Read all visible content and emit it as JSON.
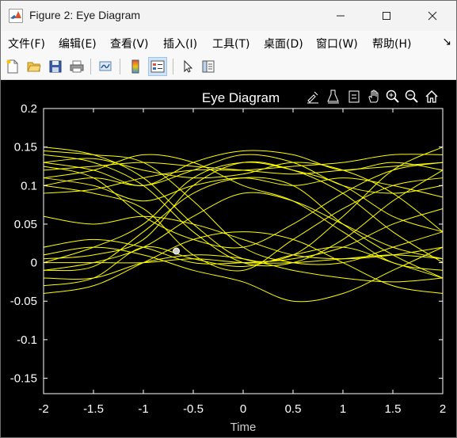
{
  "window": {
    "title": "Figure 2: Eye Diagram",
    "minimize_icon": "minimize-icon",
    "maximize_icon": "maximize-icon",
    "close_icon": "close-icon",
    "app_icon": "matlab-logo-icon"
  },
  "menu": {
    "items": [
      "文件(F)",
      "编辑(E)",
      "查看(V)",
      "插入(I)",
      "工具(T)",
      "桌面(D)",
      "窗口(W)",
      "帮助(H)"
    ],
    "overflow": "↘"
  },
  "toolbar": {
    "buttons": [
      "new-figure-icon",
      "open-file-icon",
      "save-icon",
      "print-icon",
      "link-plot-icon",
      "colorbar-icon",
      "legend-icon",
      "pointer-icon",
      "property-inspector-icon"
    ]
  },
  "axes_toolbar": {
    "buttons": [
      "brush-icon",
      "data-tips-icon",
      "export-icon",
      "pan-icon",
      "zoom-in-icon",
      "zoom-out-icon",
      "home-icon"
    ]
  },
  "colors": {
    "trace": "#ffff00",
    "axes_bg": "#000000",
    "axis_line": "#ffffff",
    "tick_label": "#ffffff"
  },
  "chart_data": {
    "type": "line",
    "title": "Eye Diagram",
    "xlabel": "Time",
    "ylabel": "",
    "xlim": [
      -2,
      2
    ],
    "ylim": [
      -0.17,
      0.2
    ],
    "xticks": [
      -2,
      -1.5,
      -1,
      -0.5,
      0,
      0.5,
      1,
      1.5,
      2
    ],
    "xtick_labels": [
      "-2",
      "-1.5",
      "-1",
      "-0.5",
      "0",
      "0.5",
      "1",
      "1.5",
      "2"
    ],
    "yticks": [
      0.2,
      0.15,
      0.1,
      0.05,
      0,
      -0.05,
      -0.1,
      -0.15
    ],
    "ytick_labels": [
      "0.2",
      "0.15",
      "0.1",
      "0.05",
      "0",
      "-0.05",
      "-0.1",
      "-0.15"
    ],
    "grid": false,
    "series": [
      {
        "x": [
          -2,
          -1.5,
          -1,
          -0.5,
          0,
          0.5,
          1,
          1.5,
          2
        ],
        "y": [
          0.15,
          0.14,
          0.11,
          0.05,
          0.005,
          0.01,
          0.06,
          0.12,
          0.15
        ]
      },
      {
        "x": [
          -2,
          -1.5,
          -1,
          -0.5,
          0,
          0.5,
          1,
          1.5,
          2
        ],
        "y": [
          0.14,
          0.13,
          0.1,
          0.04,
          0.0,
          0.0,
          0.03,
          0.08,
          0.12
        ]
      },
      {
        "x": [
          -2,
          -1.5,
          -1,
          -0.5,
          0,
          0.5,
          1,
          1.5,
          2
        ],
        "y": [
          0.13,
          0.135,
          0.12,
          0.11,
          0.115,
          0.13,
          0.12,
          0.09,
          0.04
        ]
      },
      {
        "x": [
          -2,
          -1.5,
          -1,
          -0.5,
          0,
          0.5,
          1,
          1.5,
          2
        ],
        "y": [
          0.12,
          0.125,
          0.13,
          0.125,
          0.12,
          0.115,
          0.12,
          0.125,
          0.13
        ]
      },
      {
        "x": [
          -2,
          -1.5,
          -1,
          -0.5,
          0,
          0.5,
          1,
          1.5,
          2
        ],
        "y": [
          0.1,
          0.11,
          0.1,
          0.12,
          0.14,
          0.13,
          0.1,
          0.09,
          0.1
        ]
      },
      {
        "x": [
          -2,
          -1.5,
          -1,
          -0.5,
          0,
          0.5,
          1,
          1.5,
          2
        ],
        "y": [
          0.09,
          0.095,
          0.11,
          0.12,
          0.12,
          0.125,
          0.13,
          0.14,
          0.14
        ]
      },
      {
        "x": [
          -2,
          -1.5,
          -1,
          -0.5,
          0,
          0.5,
          1,
          1.5,
          2
        ],
        "y": [
          0.11,
          0.1,
          0.08,
          0.1,
          0.11,
          0.1,
          0.11,
          0.1,
          0.085
        ]
      },
      {
        "x": [
          -2,
          -1.5,
          -1,
          -0.5,
          0,
          0.5,
          1,
          1.5,
          2
        ],
        "y": [
          0.13,
          0.12,
          0.1,
          0.13,
          0.145,
          0.14,
          0.12,
          0.13,
          0.12
        ]
      },
      {
        "x": [
          -2,
          -1.5,
          -1,
          -0.5,
          0,
          0.5,
          1,
          1.5,
          2
        ],
        "y": [
          0.125,
          0.11,
          0.06,
          0.03,
          0.02,
          0.05,
          0.09,
          0.12,
          0.13
        ]
      },
      {
        "x": [
          -2,
          -1.5,
          -1,
          -0.5,
          0,
          0.5,
          1,
          1.5,
          2
        ],
        "y": [
          0.1,
          0.09,
          0.07,
          0.01,
          -0.01,
          0.03,
          0.07,
          0.1,
          0.11
        ]
      },
      {
        "x": [
          -2,
          -1.5,
          -1,
          -0.5,
          0,
          0.5,
          1,
          1.5,
          2
        ],
        "y": [
          0.005,
          0.01,
          0.03,
          0.1,
          0.13,
          0.12,
          0.09,
          0.04,
          0.0
        ]
      },
      {
        "x": [
          -2,
          -1.5,
          -1,
          -0.5,
          0,
          0.5,
          1,
          1.5,
          2
        ],
        "y": [
          0.0,
          0.02,
          0.05,
          0.11,
          0.13,
          0.12,
          0.1,
          0.06,
          0.04
        ]
      },
      {
        "x": [
          -2,
          -1.5,
          -1,
          -0.5,
          0,
          0.5,
          1,
          1.5,
          2
        ],
        "y": [
          -0.01,
          -0.005,
          0.04,
          0.09,
          0.11,
          0.1,
          0.05,
          0.01,
          -0.02
        ]
      },
      {
        "x": [
          -2,
          -1.5,
          -1,
          -0.5,
          0,
          0.5,
          1,
          1.5,
          2
        ],
        "y": [
          0.0,
          0.0,
          0.0,
          0.005,
          0.0,
          0.0,
          0.005,
          0.01,
          0.005
        ]
      },
      {
        "x": [
          -2,
          -1.5,
          -1,
          -0.5,
          0,
          0.5,
          1,
          1.5,
          2
        ],
        "y": [
          -0.02,
          -0.02,
          0.0,
          0.01,
          0.005,
          -0.01,
          -0.02,
          -0.025,
          -0.02
        ]
      },
      {
        "x": [
          -2,
          -1.5,
          -1,
          -0.5,
          0,
          0.5,
          1,
          1.5,
          2
        ],
        "y": [
          -0.04,
          -0.03,
          0.0,
          0.03,
          0.04,
          0.03,
          0.0,
          -0.03,
          -0.04
        ]
      },
      {
        "x": [
          -2,
          -1.5,
          -1,
          -0.5,
          0,
          0.5,
          1,
          1.5,
          2
        ],
        "y": [
          0.01,
          0.02,
          0.01,
          -0.01,
          -0.025,
          -0.05,
          -0.04,
          -0.01,
          0.02
        ]
      },
      {
        "x": [
          -2,
          -1.5,
          -1,
          -0.5,
          0,
          0.5,
          1,
          1.5,
          2
        ],
        "y": [
          -0.03,
          -0.02,
          0.02,
          0.005,
          -0.005,
          0.01,
          0.02,
          0.0,
          -0.02
        ]
      },
      {
        "x": [
          -2,
          -1.5,
          -1,
          -0.5,
          0,
          0.5,
          1,
          1.5,
          2
        ],
        "y": [
          0.02,
          0.03,
          0.02,
          0.0,
          0.0,
          0.005,
          0.02,
          0.05,
          0.07
        ]
      },
      {
        "x": [
          -2,
          -1.5,
          -1,
          -0.5,
          0,
          0.5,
          1,
          1.5,
          2
        ],
        "y": [
          0.145,
          0.14,
          0.13,
          0.08,
          0.02,
          0.0,
          0.0,
          0.02,
          0.04
        ]
      },
      {
        "x": [
          -2,
          -1.5,
          -1,
          -0.5,
          0,
          0.5,
          1,
          1.5,
          2
        ],
        "y": [
          0.11,
          0.12,
          0.14,
          0.13,
          0.1,
          0.08,
          0.04,
          0.0,
          -0.01
        ]
      },
      {
        "x": [
          -2,
          -1.5,
          -1,
          -0.5,
          0,
          0.5,
          1,
          1.5,
          2
        ],
        "y": [
          0.06,
          0.05,
          0.06,
          0.05,
          0.03,
          0.01,
          0.005,
          0.01,
          0.02
        ]
      },
      {
        "x": [
          -2,
          -1.5,
          -1,
          -0.5,
          0,
          0.5,
          1,
          1.5,
          2
        ],
        "y": [
          -0.01,
          0.0,
          0.02,
          0.06,
          0.09,
          0.08,
          0.05,
          0.02,
          0.005
        ]
      }
    ],
    "marker": {
      "x": -0.67,
      "y": 0.015
    }
  }
}
